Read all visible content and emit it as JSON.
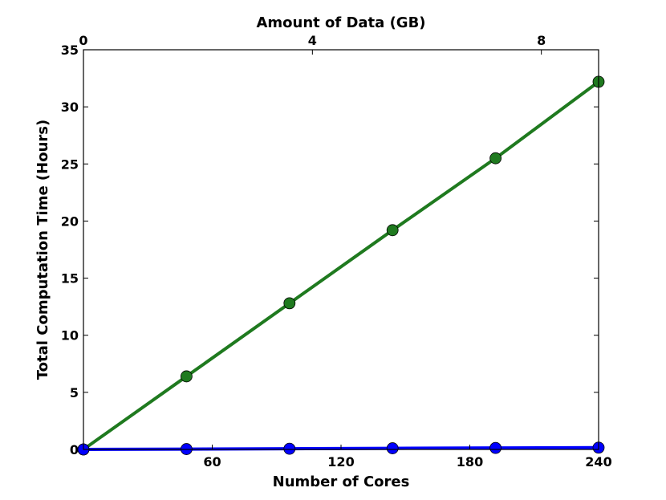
{
  "chart_data": {
    "type": "line",
    "title": "",
    "xlabel": "Number of Cores",
    "ylabel": "Total Computation Time (Hours)",
    "x2label": "Amount of Data (GB)",
    "xlim": [
      0,
      240
    ],
    "ylim": [
      0,
      35
    ],
    "x2lim": [
      0,
      9
    ],
    "xticks": [
      60,
      120,
      180,
      240
    ],
    "yticks": [
      0,
      5,
      10,
      15,
      20,
      25,
      30,
      35
    ],
    "x2ticks": [
      0,
      4,
      8
    ],
    "grid": false,
    "x": [
      0,
      48,
      96,
      144,
      192,
      240
    ],
    "series": [
      {
        "color": "#1f7a1f",
        "values": [
          0,
          6.4,
          12.8,
          19.2,
          25.5,
          32.2
        ]
      },
      {
        "color": "#0000ff",
        "values": [
          0,
          0.03,
          0.06,
          0.1,
          0.13,
          0.16
        ]
      }
    ]
  }
}
